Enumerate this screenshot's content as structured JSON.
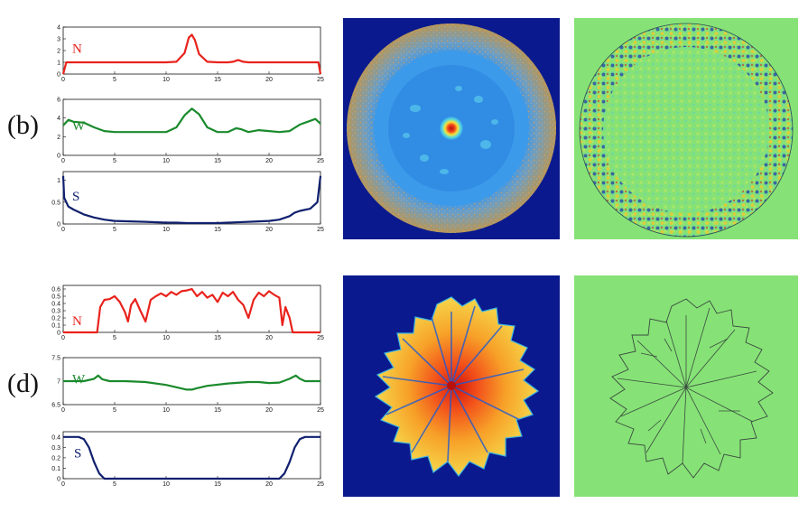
{
  "figure": {
    "panels": [
      {
        "label": "(b)",
        "plots": [
          {
            "var": "N",
            "color": "#e8231c",
            "ylim": [
              0,
              4
            ],
            "yticks": [
              "0",
              "1",
              "2",
              "3",
              "4"
            ],
            "xticks": [
              "0",
              "5",
              "10",
              "15",
              "20",
              "25"
            ],
            "x": [
              0,
              0.3,
              1,
              5,
              10,
              11,
              11.8,
              12.2,
              12.5,
              12.8,
              13.2,
              14,
              15,
              16,
              16.5,
              17,
              17.5,
              18,
              20,
              22,
              24,
              24.8,
              25
            ],
            "y": [
              0,
              1.0,
              1.0,
              1.0,
              1.0,
              1.05,
              1.8,
              3.1,
              3.35,
              2.9,
              1.7,
              1.05,
              1.0,
              1.0,
              1.05,
              1.2,
              1.05,
              1.0,
              1.0,
              1.0,
              1.0,
              1.0,
              0
            ]
          },
          {
            "var": "W",
            "color": "#1a8a2c",
            "ylim": [
              0,
              6
            ],
            "yticks": [
              "0",
              "2",
              "4",
              "6"
            ],
            "xticks": [
              "0",
              "5",
              "10",
              "15",
              "20",
              "25"
            ],
            "x": [
              0,
              0.5,
              1,
              2,
              3,
              4,
              5,
              8,
              10,
              11,
              11.8,
              12.5,
              13.2,
              14,
              15,
              16,
              16.8,
              17.3,
              18,
              19,
              20,
              21,
              22,
              23,
              24,
              24.5,
              25
            ],
            "y": [
              3.2,
              3.8,
              3.6,
              3.5,
              3.0,
              2.6,
              2.5,
              2.5,
              2.5,
              3.0,
              4.3,
              5.0,
              4.4,
              3.0,
              2.5,
              2.5,
              2.9,
              2.8,
              2.5,
              2.7,
              2.6,
              2.5,
              2.6,
              3.3,
              3.7,
              3.9,
              3.4
            ]
          },
          {
            "var": "S",
            "color": "#10206e",
            "ylim": [
              0,
              1.2
            ],
            "yticks": [
              "0",
              "0.5",
              "1"
            ],
            "xticks": [
              "0",
              "5",
              "10",
              "15",
              "20",
              "25"
            ],
            "x": [
              0,
              0.1,
              0.5,
              1,
              2,
              3,
              4,
              5,
              8,
              10,
              11,
              12,
              14,
              15,
              16,
              18,
              20,
              21,
              22,
              22.5,
              23,
              24,
              24.7,
              25
            ],
            "y": [
              1.1,
              0.6,
              0.4,
              0.33,
              0.22,
              0.15,
              0.1,
              0.07,
              0.05,
              0.03,
              0.03,
              0.02,
              0.02,
              0.02,
              0.03,
              0.05,
              0.07,
              0.1,
              0.18,
              0.26,
              0.3,
              0.35,
              0.5,
              1.1
            ]
          }
        ]
      },
      {
        "label": "(d)",
        "plots": [
          {
            "var": "N",
            "color": "#e8231c",
            "ylim": [
              0,
              0.65
            ],
            "yticks": [
              "0",
              "0.1",
              "0.2",
              "0.3",
              "0.4",
              "0.5",
              "0.6"
            ],
            "xticks": [
              "0",
              "5",
              "10",
              "15",
              "20",
              "25"
            ],
            "x": [
              0,
              3.3,
              3.6,
              4,
              4.5,
              5,
              5.5,
              6,
              6.3,
              6.6,
              7,
              7.5,
              8,
              8.5,
              9,
              9.5,
              10,
              10.5,
              11,
              11.5,
              12,
              12.5,
              13,
              13.5,
              14,
              14.5,
              15,
              15.5,
              16,
              16.5,
              17,
              17.5,
              18,
              18.5,
              19,
              19.5,
              20,
              20.5,
              21,
              21.3,
              21.6,
              22,
              22.3,
              22.6,
              25
            ],
            "y": [
              0,
              0,
              0.35,
              0.45,
              0.46,
              0.5,
              0.42,
              0.28,
              0.15,
              0.38,
              0.46,
              0.3,
              0.15,
              0.45,
              0.5,
              0.54,
              0.5,
              0.56,
              0.52,
              0.57,
              0.58,
              0.6,
              0.5,
              0.56,
              0.48,
              0.52,
              0.42,
              0.55,
              0.5,
              0.56,
              0.45,
              0.38,
              0.2,
              0.45,
              0.55,
              0.5,
              0.57,
              0.52,
              0.48,
              0.1,
              0.35,
              0.2,
              0.0,
              0.0,
              0
            ]
          },
          {
            "var": "W",
            "color": "#1a8a2c",
            "ylim": [
              6.5,
              7.5
            ],
            "yticks": [
              "6.5",
              "7",
              "7.5"
            ],
            "xticks": [
              "0",
              "5",
              "10",
              "15",
              "20",
              "25"
            ],
            "x": [
              0,
              2,
              3,
              3.4,
              3.8,
              4.5,
              6,
              8,
              10,
              11,
              12,
              12.5,
              13,
              14,
              16,
              18,
              19,
              20,
              21,
              22,
              22.6,
              23,
              23.5,
              24,
              25
            ],
            "y": [
              7.0,
              7.0,
              7.05,
              7.12,
              7.04,
              7.0,
              7.0,
              6.98,
              6.92,
              6.87,
              6.82,
              6.82,
              6.85,
              6.9,
              6.95,
              6.98,
              6.98,
              6.96,
              6.97,
              7.05,
              7.12,
              7.05,
              7.0,
              7.0,
              7.0
            ]
          },
          {
            "var": "S",
            "color": "#10206e",
            "ylim": [
              0,
              0.45
            ],
            "yticks": [
              "0",
              "0.1",
              "0.2",
              "0.3",
              "0.4"
            ],
            "xticks": [
              "0",
              "5",
              "10",
              "15",
              "20",
              "25"
            ],
            "x": [
              0,
              1.5,
              2,
              2.5,
              3,
              3.5,
              4,
              5,
              10,
              15,
              20,
              21,
              21.5,
              22,
              22.5,
              23,
              23.5,
              25
            ],
            "y": [
              0.4,
              0.4,
              0.38,
              0.3,
              0.16,
              0.05,
              0.0,
              0.0,
              0.0,
              0.0,
              0.0,
              0.0,
              0.05,
              0.16,
              0.3,
              0.38,
              0.4,
              0.4
            ]
          }
        ]
      }
    ]
  },
  "colors": {
    "map_background": "#0a1a8e",
    "pattern_background": "#86e276"
  }
}
